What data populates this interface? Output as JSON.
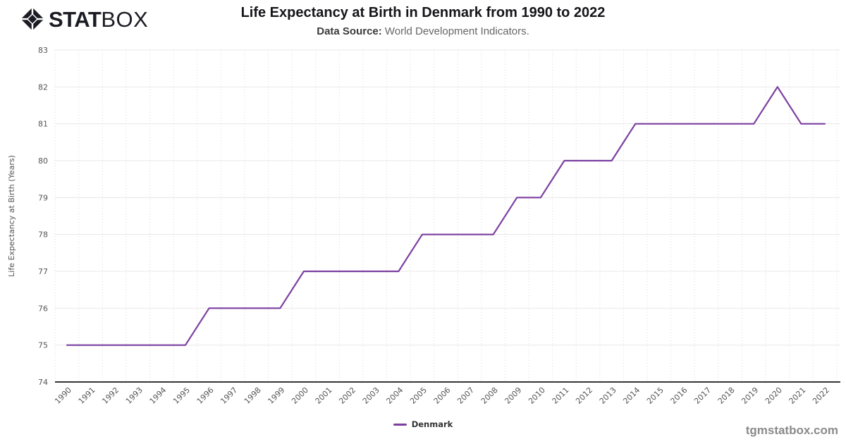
{
  "header": {
    "logo_stat": "STAT",
    "logo_box": "BOX",
    "title": "Life Expectancy at Birth in Denmark from 1990 to 2022",
    "subtitle_label": "Data Source:",
    "subtitle_text": " World Development Indicators."
  },
  "chart_data": {
    "type": "line",
    "title": "Life Expectancy at Birth in Denmark from 1990 to 2022",
    "xlabel": "",
    "ylabel": "Life Expectancy at Birth (Years)",
    "ylim": [
      74,
      83
    ],
    "yticks": [
      74,
      75,
      76,
      77,
      78,
      79,
      80,
      81,
      82,
      83
    ],
    "x": [
      1990,
      1991,
      1992,
      1993,
      1994,
      1995,
      1996,
      1997,
      1998,
      1999,
      2000,
      2001,
      2002,
      2003,
      2004,
      2005,
      2006,
      2007,
      2008,
      2009,
      2010,
      2011,
      2012,
      2013,
      2014,
      2015,
      2016,
      2017,
      2018,
      2019,
      2020,
      2021,
      2022
    ],
    "series": [
      {
        "name": "Denmark",
        "color": "#7b3fa0",
        "values": [
          75,
          75,
          75,
          75,
          75,
          75,
          76,
          76,
          76,
          76,
          77,
          77,
          77,
          77,
          77,
          78,
          78,
          78,
          78,
          79,
          79,
          80,
          80,
          80,
          81,
          81,
          81,
          81,
          81,
          81,
          82,
          81,
          81
        ]
      }
    ],
    "grid": true,
    "legend_position": "bottom"
  },
  "legend": {
    "items": [
      {
        "label": "Denmark",
        "color": "#7b3fa0"
      }
    ]
  },
  "footer": {
    "watermark": "tgmstatbox.com"
  },
  "colors": {
    "accent": "#7b3fa0",
    "grid_horizontal": "#e8e8e8",
    "grid_vertical": "#d8d8d8",
    "axis_line": "#1a1a1a",
    "tick_text": "#555555",
    "logo_ink": "#1b1b24"
  }
}
